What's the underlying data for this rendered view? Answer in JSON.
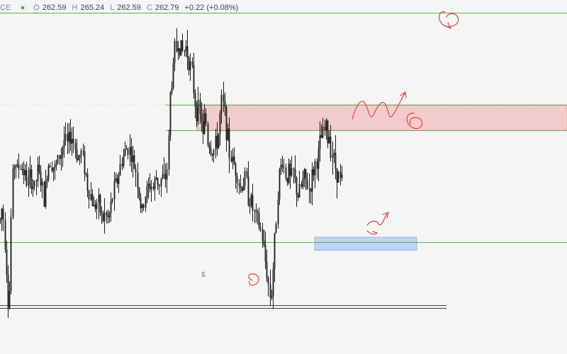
{
  "legend": {
    "symbol_fragment": "CE",
    "open_label": "O",
    "open": "262.59",
    "high_label": "H",
    "high": "265.24",
    "low_label": "L",
    "low": "262.59",
    "close_label": "C",
    "close": "262.79",
    "change": "+0.22 (+0.08%)",
    "status_color": "#2e9d6a"
  },
  "marker_text": "$",
  "colors": {
    "background": "#f5f5f5",
    "candle": "#1a1a1a",
    "hline": "#6aa85a",
    "supply_zone": "#f2c7c8",
    "supply_zone_border": "#e89a9c",
    "demand_zone": "#bcd0f0",
    "demand_zone_border": "#8fb0e6",
    "drawing": "#e0443e",
    "baseline": "#444444"
  },
  "chart_data": {
    "type": "candlestick",
    "title": "",
    "y_range": [
      222.5,
      279.5
    ],
    "last_values": {
      "open": 262.59,
      "high": 265.24,
      "low": 262.59,
      "close": 262.79,
      "change": 0.22,
      "change_pct": 0.08
    },
    "path": [
      [
        0,
        244
      ],
      [
        2,
        246
      ],
      [
        5,
        244
      ],
      [
        8,
        238
      ],
      [
        10,
        234
      ],
      [
        12,
        228
      ],
      [
        14,
        236
      ],
      [
        16,
        248
      ],
      [
        18,
        252
      ],
      [
        21,
        254
      ],
      [
        24,
        252
      ],
      [
        28,
        253
      ],
      [
        33,
        252
      ],
      [
        38,
        250
      ],
      [
        43,
        251
      ],
      [
        48,
        249
      ],
      [
        53,
        252
      ],
      [
        58,
        250
      ],
      [
        62,
        247
      ],
      [
        66,
        252
      ],
      [
        70,
        254
      ],
      [
        74,
        253
      ],
      [
        78,
        252
      ],
      [
        82,
        254
      ],
      [
        86,
        255
      ],
      [
        90,
        257
      ],
      [
        95,
        256
      ],
      [
        100,
        258
      ],
      [
        105,
        256
      ],
      [
        110,
        254
      ],
      [
        115,
        255
      ],
      [
        120,
        252
      ],
      [
        124,
        249
      ],
      [
        128,
        248
      ],
      [
        132,
        246
      ],
      [
        136,
        247
      ],
      [
        140,
        246
      ],
      [
        144,
        244
      ],
      [
        148,
        245
      ],
      [
        152,
        244
      ],
      [
        156,
        246
      ],
      [
        160,
        249
      ],
      [
        164,
        250
      ],
      [
        168,
        252
      ],
      [
        172,
        254
      ],
      [
        176,
        255
      ],
      [
        180,
        256
      ],
      [
        184,
        255
      ],
      [
        188,
        253
      ],
      [
        192,
        252
      ],
      [
        196,
        248
      ],
      [
        200,
        245
      ],
      [
        204,
        248
      ],
      [
        208,
        249
      ],
      [
        212,
        250
      ],
      [
        216,
        249
      ],
      [
        220,
        251
      ],
      [
        224,
        250
      ],
      [
        228,
        251
      ],
      [
        232,
        250
      ],
      [
        236,
        253
      ],
      [
        238,
        258
      ],
      [
        240,
        265
      ],
      [
        244,
        268
      ],
      [
        246,
        272
      ],
      [
        248,
        271
      ],
      [
        250,
        273
      ],
      [
        254,
        272
      ],
      [
        258,
        271
      ],
      [
        262,
        272
      ],
      [
        266,
        270
      ],
      [
        270,
        268
      ],
      [
        273,
        265
      ],
      [
        275,
        263
      ],
      [
        277,
        262
      ],
      [
        279,
        262
      ],
      [
        281,
        260
      ],
      [
        283,
        262
      ],
      [
        286,
        257
      ],
      [
        289,
        262
      ],
      [
        292,
        257
      ],
      [
        296,
        256
      ],
      [
        300,
        255
      ],
      [
        304,
        256
      ],
      [
        308,
        258
      ],
      [
        312,
        263
      ],
      [
        316,
        262
      ],
      [
        320,
        258
      ],
      [
        323,
        255
      ],
      [
        326,
        254
      ],
      [
        330,
        253
      ],
      [
        334,
        252
      ],
      [
        338,
        249
      ],
      [
        342,
        250
      ],
      [
        346,
        251
      ],
      [
        350,
        248
      ],
      [
        354,
        247
      ],
      [
        358,
        245
      ],
      [
        362,
        244
      ],
      [
        366,
        243
      ],
      [
        370,
        241
      ],
      [
        373,
        238
      ],
      [
        376,
        236
      ],
      [
        379,
        233
      ],
      [
        382,
        231
      ],
      [
        384,
        235
      ],
      [
        386,
        238
      ],
      [
        388,
        242
      ],
      [
        390,
        246
      ],
      [
        392,
        250
      ],
      [
        395,
        252
      ],
      [
        398,
        254
      ],
      [
        401,
        252
      ],
      [
        404,
        251
      ],
      [
        407,
        252
      ],
      [
        410,
        250
      ],
      [
        413,
        252
      ],
      [
        416,
        250
      ],
      [
        420,
        248
      ],
      [
        424,
        249
      ],
      [
        428,
        251
      ],
      [
        432,
        250
      ],
      [
        436,
        249
      ],
      [
        440,
        251
      ],
      [
        444,
        253
      ],
      [
        448,
        254
      ],
      [
        452,
        257
      ],
      [
        456,
        258
      ],
      [
        460,
        259
      ],
      [
        462,
        257
      ],
      [
        464,
        258
      ],
      [
        466,
        256
      ],
      [
        469,
        255
      ],
      [
        472,
        253
      ],
      [
        475,
        252
      ],
      [
        478,
        251
      ],
      [
        480,
        250
      ],
      [
        483,
        250.5
      ]
    ],
    "horizontal_levels": [
      277.5,
      262.6,
      258.5,
      240.5,
      230.4,
      229.9
    ],
    "level_extents": [
      [
        0,
        800
      ],
      [
        234,
        800
      ],
      [
        234,
        800
      ],
      [
        0,
        800
      ],
      [
        0,
        630
      ],
      [
        0,
        630
      ]
    ],
    "zones": [
      {
        "kind": "supply",
        "top": 262.6,
        "bottom": 258.5,
        "x_start": 278,
        "x_end": 800
      },
      {
        "kind": "demand",
        "top": 241.3,
        "bottom": 239.2,
        "x_start": 444,
        "x_end": 588
      }
    ]
  }
}
